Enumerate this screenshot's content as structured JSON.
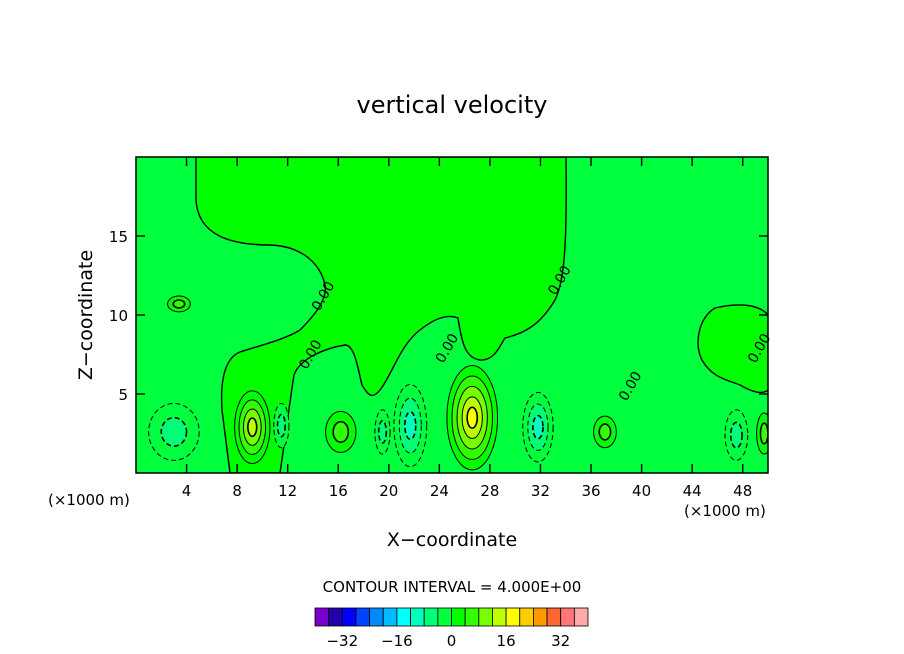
{
  "chart_data": {
    "type": "contour",
    "title": "vertical velocity",
    "xlabel": "X−coordinate",
    "ylabel": "Z−coordinate",
    "x_unit_left": "(×1000 m)",
    "x_unit_right": "(×1000 m)",
    "xlim": [
      0,
      50
    ],
    "ylim": [
      0,
      20
    ],
    "x_ticks": [
      4,
      8,
      12,
      16,
      20,
      24,
      28,
      32,
      36,
      40,
      44,
      48
    ],
    "y_ticks": [
      5,
      10,
      15
    ],
    "contour_interval_text": "CONTOUR INTERVAL = 4.000E+00",
    "contour_labels": [
      {
        "text": "0.00",
        "x": 14.5,
        "y": 10.2
      },
      {
        "text": "0.00",
        "x": 13.5,
        "y": 6.5
      },
      {
        "text": "0.00",
        "x": 24.3,
        "y": 6.9
      },
      {
        "text": "0.00",
        "x": 33.2,
        "y": 11.2
      },
      {
        "text": "0.00",
        "x": 38.8,
        "y": 4.5
      },
      {
        "text": "0.00",
        "x": 49.0,
        "y": 6.9
      }
    ],
    "features": [
      {
        "sign": "negative",
        "x": 3.0,
        "y": 2.6,
        "rx": 2.0,
        "ry": 1.8,
        "peak": -6
      },
      {
        "sign": "positive",
        "x": 9.2,
        "y": 2.9,
        "rx": 1.4,
        "ry": 2.3,
        "peak": 14
      },
      {
        "sign": "negative",
        "x": 11.5,
        "y": 3.0,
        "rx": 0.6,
        "ry": 1.4,
        "peak": -4
      },
      {
        "sign": "positive",
        "x": 16.2,
        "y": 2.6,
        "rx": 1.2,
        "ry": 1.3,
        "peak": 6
      },
      {
        "sign": "negative",
        "x": 19.5,
        "y": 2.6,
        "rx": 0.6,
        "ry": 1.4,
        "peak": -5
      },
      {
        "sign": "negative",
        "x": 21.7,
        "y": 3.0,
        "rx": 1.3,
        "ry": 2.6,
        "peak": -10
      },
      {
        "sign": "positive",
        "x": 26.6,
        "y": 3.5,
        "rx": 2.0,
        "ry": 3.3,
        "peak": 18
      },
      {
        "sign": "negative",
        "x": 31.8,
        "y": 2.9,
        "rx": 1.2,
        "ry": 2.2,
        "peak": -8
      },
      {
        "sign": "positive",
        "x": 37.1,
        "y": 2.6,
        "rx": 0.9,
        "ry": 1.0,
        "peak": 6
      },
      {
        "sign": "negative",
        "x": 47.5,
        "y": 2.4,
        "rx": 0.9,
        "ry": 1.6,
        "peak": -5
      },
      {
        "sign": "positive",
        "x": 49.7,
        "y": 2.5,
        "rx": 0.6,
        "ry": 1.3,
        "peak": 5
      },
      {
        "sign": "positive",
        "x": 3.4,
        "y": 10.7,
        "rx": 0.9,
        "ry": 0.5,
        "peak": 2
      }
    ],
    "colorbar": {
      "tick_labels": [
        "−32",
        "−16",
        "0",
        "16",
        "32"
      ],
      "tick_values": [
        -32,
        -16,
        0,
        16,
        32
      ],
      "min": -40,
      "max": 40,
      "colors": [
        "#7a00cc",
        "#2200aa",
        "#0000ff",
        "#0044ff",
        "#0088ff",
        "#00bbff",
        "#00ffff",
        "#00ffbb",
        "#00ff77",
        "#00ff3c",
        "#00ff00",
        "#33ff00",
        "#77ff00",
        "#bbff00",
        "#ffff00",
        "#ffcc00",
        "#ff9900",
        "#ff6633",
        "#ff7777",
        "#ffaaaa"
      ]
    },
    "colors": {
      "zero_band": "#00ff3c",
      "background": "#ffffff"
    }
  }
}
